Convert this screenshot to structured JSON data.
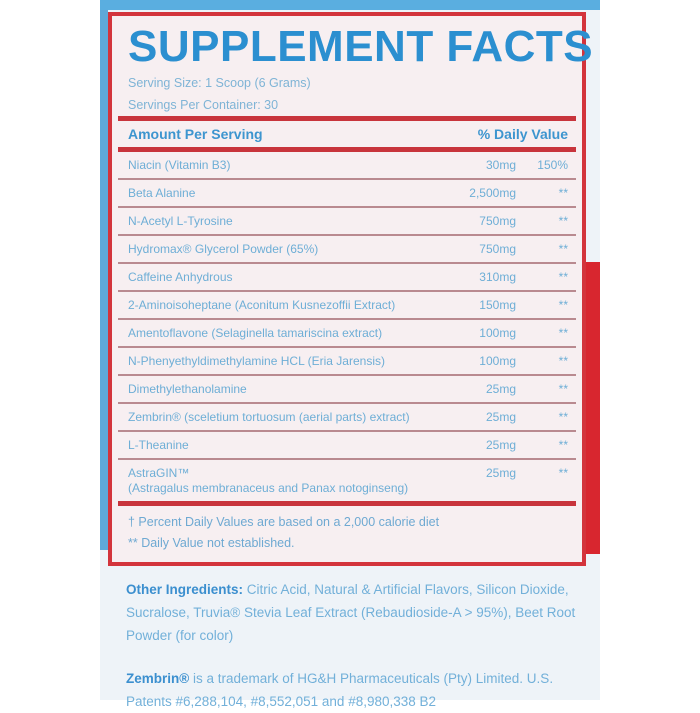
{
  "label": {
    "title": "SUPPLEMENT FACTS",
    "serving_size": "Serving Size: 1 Scoop (6 Grams)",
    "servings_per_container": "Servings Per Container: 30",
    "header_amount": "Amount Per Serving",
    "header_dv": "% Daily Value",
    "rows": [
      {
        "name": "Niacin (Vitamin B3)",
        "amount": "30mg",
        "dv": "150%"
      },
      {
        "name": "Beta Alanine",
        "amount": "2,500mg",
        "dv": "**"
      },
      {
        "name": "N-Acetyl L-Tyrosine",
        "amount": "750mg",
        "dv": "**"
      },
      {
        "name": "Hydromax® Glycerol Powder (65%)",
        "amount": "750mg",
        "dv": "**"
      },
      {
        "name": "Caffeine Anhydrous",
        "amount": "310mg",
        "dv": "**"
      },
      {
        "name": "2-Aminoisoheptane (Aconitum Kusnezoffii Extract)",
        "amount": "150mg",
        "dv": "**"
      },
      {
        "name": "Amentoflavone (Selaginella tamariscina extract)",
        "amount": "100mg",
        "dv": "**"
      },
      {
        "name": "N-Phenyethyldimethylamine HCL (Eria Jarensis)",
        "amount": "100mg",
        "dv": "**"
      },
      {
        "name": "Dimethylethanolamine",
        "amount": "25mg",
        "dv": "**"
      },
      {
        "name": "Zembrin® (sceletium tortuosum (aerial parts) extract)",
        "amount": "25mg",
        "dv": "**"
      },
      {
        "name": "L-Theanine",
        "amount": "25mg",
        "dv": "**"
      },
      {
        "name": "AstraGIN™",
        "name2": "(Astragalus membranaceus and Panax notoginseng)",
        "amount": "25mg",
        "dv": "**"
      }
    ],
    "footnote1": "† Percent Daily Values are based on a 2,000 calorie diet",
    "footnote2": "** Daily Value not established."
  },
  "other_ingredients": {
    "label": "Other Ingredients:",
    "text": " Citric Acid, Natural & Artificial Flavors, Silicon Dioxide, Sucralose, Truvia® Stevia Leaf Extract (Rebaudioside-A > 95%), Beet Root Powder (for color)"
  },
  "trademark": {
    "label": "Zembrin®",
    "text": " is a trademark of HG&H Pharmaceuticals (Pty) Limited. U.S. Patents #6,288,104, #8,552,051 and #8,980,338 B2"
  },
  "colors": {
    "accent_blue": "#2b8fd0",
    "border_red": "#d3343c"
  }
}
